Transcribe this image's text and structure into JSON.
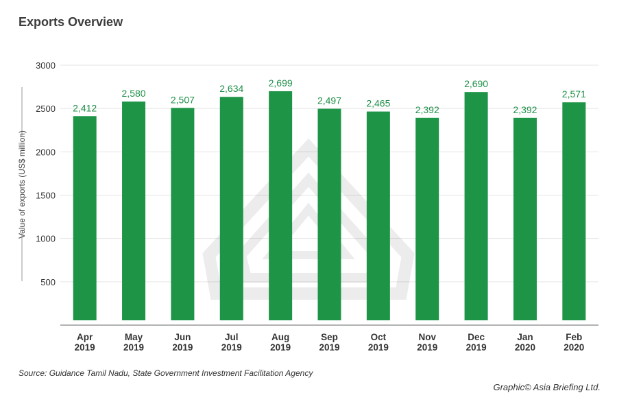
{
  "chart_data": {
    "type": "bar",
    "title": "Exports Overview",
    "ylabel": "Value of exports (US$ million)",
    "xlabel": "",
    "categories": [
      "Apr\n2019",
      "May\n2019",
      "Jun\n2019",
      "Jul\n2019",
      "Aug\n2019",
      "Sep\n2019",
      "Oct\n2019",
      "Nov\n2019",
      "Dec\n2019",
      "Jan\n2020",
      "Feb\n2020"
    ],
    "values": [
      2412,
      2580,
      2507,
      2634,
      2699,
      2497,
      2465,
      2392,
      2690,
      2392,
      2571
    ],
    "data_labels": [
      "2,412",
      "2,580",
      "2,507",
      "2,634",
      "2,699",
      "2,497",
      "2,465",
      "2,392",
      "2,690",
      "2,392",
      "2,571"
    ],
    "yticks": [
      500,
      1000,
      1500,
      2000,
      2500,
      3000
    ],
    "ylim": [
      0,
      3000
    ],
    "grid": true,
    "bar_color": "#1e9447",
    "label_color": "#1e8f47",
    "source": "Source: Guidance Tamil Nadu, State Government Investment Facilitation Agency",
    "credit": "Graphic© Asia Briefing Ltd."
  }
}
